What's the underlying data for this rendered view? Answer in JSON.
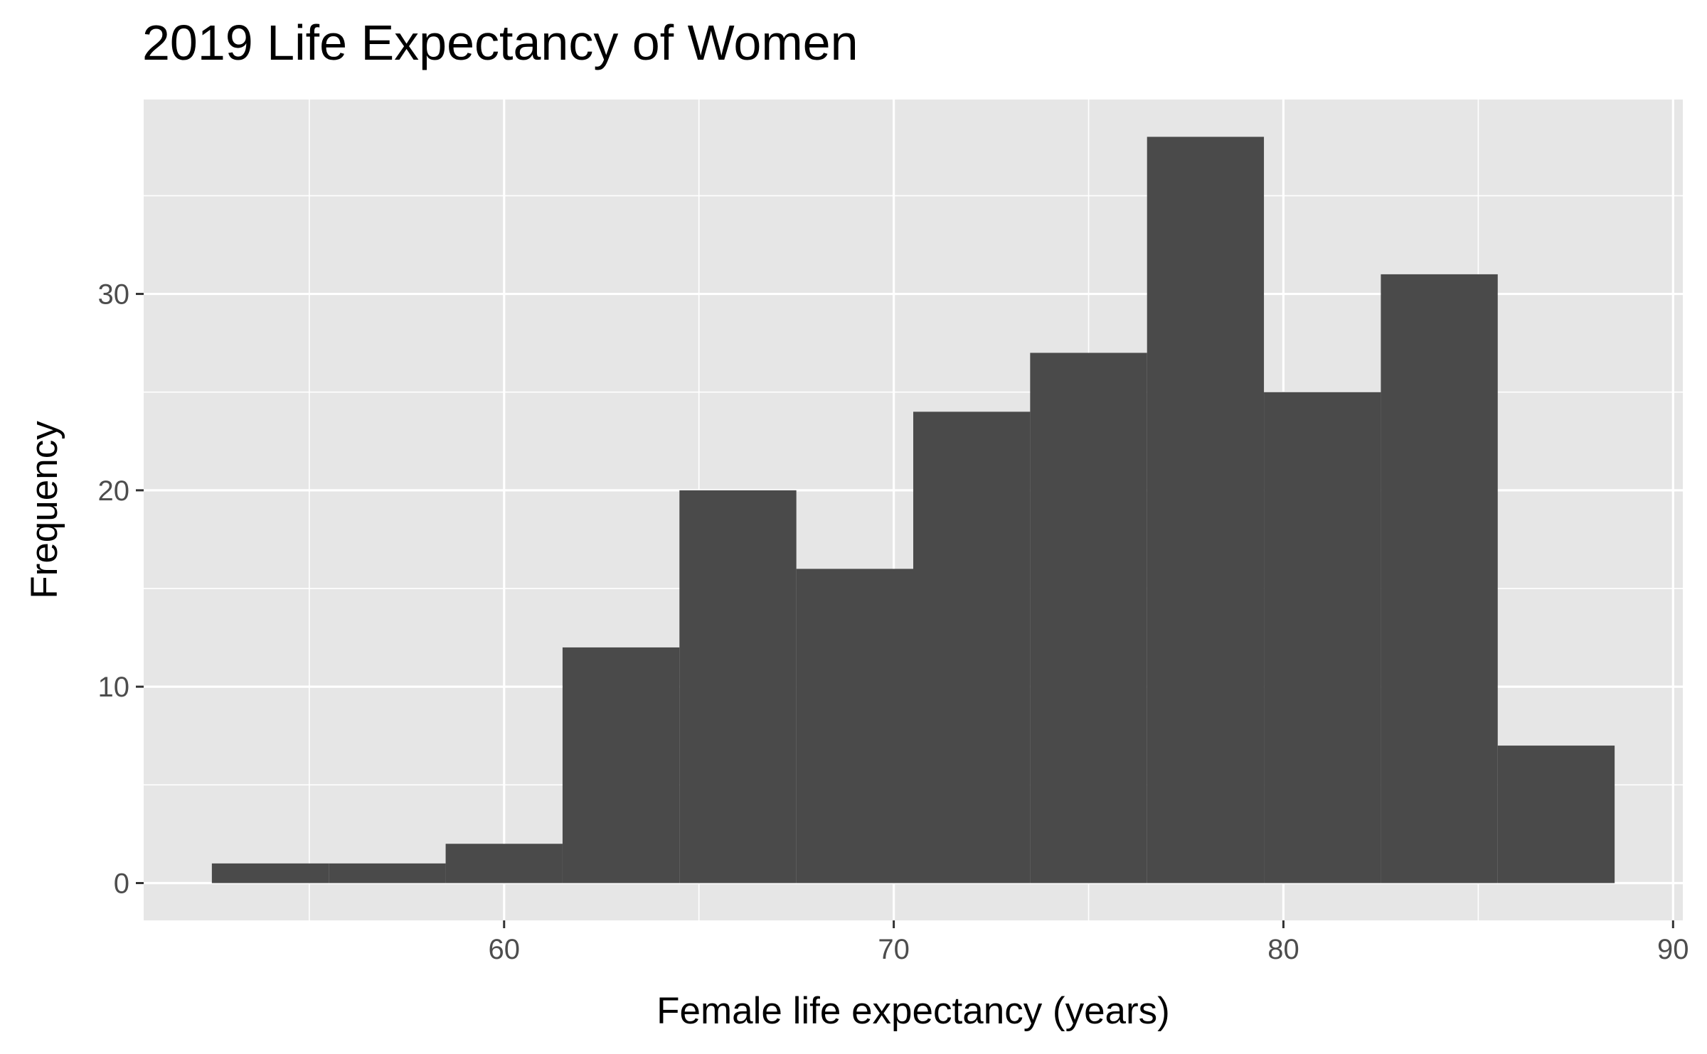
{
  "chart_data": {
    "type": "bar",
    "title": "2019 Life Expectancy of Women",
    "xlabel": "Female life expectancy (years)",
    "ylabel": "Frequency",
    "bins": [
      {
        "x0": 52.5,
        "x1": 55.5,
        "count": 1
      },
      {
        "x0": 55.5,
        "x1": 58.5,
        "count": 1
      },
      {
        "x0": 58.5,
        "x1": 61.5,
        "count": 2
      },
      {
        "x0": 61.5,
        "x1": 64.5,
        "count": 12
      },
      {
        "x0": 64.5,
        "x1": 67.5,
        "count": 20
      },
      {
        "x0": 67.5,
        "x1": 70.5,
        "count": 16
      },
      {
        "x0": 70.5,
        "x1": 73.5,
        "count": 24
      },
      {
        "x0": 73.5,
        "x1": 76.5,
        "count": 27
      },
      {
        "x0": 76.5,
        "x1": 79.5,
        "count": 38
      },
      {
        "x0": 79.5,
        "x1": 82.5,
        "count": 25
      },
      {
        "x0": 82.5,
        "x1": 85.5,
        "count": 31
      },
      {
        "x0": 85.5,
        "x1": 88.5,
        "count": 7
      }
    ],
    "xlim": [
      50.75,
      90.25
    ],
    "ylim": [
      -1.9,
      39.9
    ],
    "x_ticks": [
      60,
      70,
      80,
      90
    ],
    "x_minor_ticks": [
      55,
      65,
      75,
      85
    ],
    "y_ticks": [
      0,
      10,
      20,
      30
    ],
    "y_minor_ticks": [
      5,
      15,
      25,
      35
    ],
    "grid": true,
    "legend": "none",
    "colors": {
      "bar": "#4a4a4a",
      "panel": "#e6e6e6",
      "grid": "#ffffff",
      "tick_text": "#4d4d4d"
    }
  }
}
